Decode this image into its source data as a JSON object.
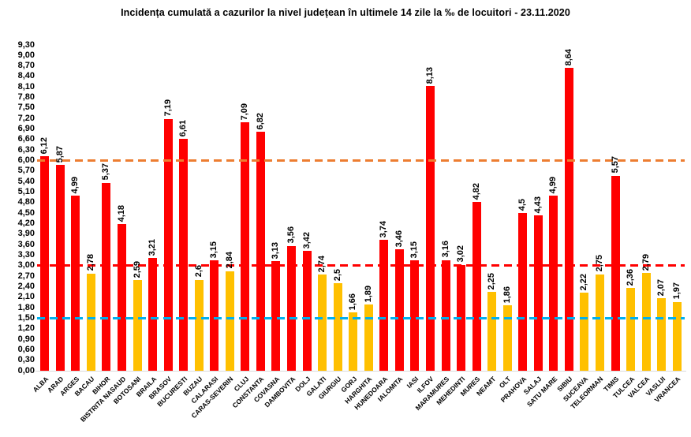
{
  "title": "Incidența cumulată a cazurilor la nivel județean în ultimele 14 zile la ‰ de locuitori - 23.11.2020",
  "chart_data": {
    "type": "bar",
    "title": "Incidența cumulată a cazurilor la nivel județean în ultimele 14 zile la ‰ de locuitori - 23.11.2020",
    "xlabel": "",
    "ylabel": "",
    "ylim": [
      0,
      9.3
    ],
    "ytick_step": 0.3,
    "grid": false,
    "legend": false,
    "ytick_labels": [
      "9,30",
      "9,00",
      "8,70",
      "8,40",
      "8,10",
      "7,80",
      "7,50",
      "7,20",
      "6,90",
      "6,60",
      "6,30",
      "6,00",
      "5,70",
      "5,40",
      "5,10",
      "4,80",
      "4,50",
      "4,20",
      "3,90",
      "3,60",
      "3,30",
      "3,00",
      "2,70",
      "2,40",
      "2,10",
      "1,80",
      "1,50",
      "1,20",
      "0,90",
      "0,60",
      "0,30",
      "0,00"
    ],
    "categories": [
      "ALBA",
      "ARAD",
      "ARGES",
      "BACAU",
      "BIHOR",
      "BISTRITA NASAUD",
      "BOTOSANI",
      "BRAILA",
      "BRASOV",
      "BUCURESTI",
      "BUZAU",
      "CALARASI",
      "CARAS-SEVERIN",
      "CLUJ",
      "CONSTANTA",
      "COVASNA",
      "DAMBOVITA",
      "DOLJ",
      "GALATI",
      "GIURGIU",
      "GORJ",
      "HARGHITA",
      "HUNEDOARA",
      "IALOMITA",
      "IASI",
      "ILFOV",
      "MARAMURES",
      "MEHEDINTI",
      "MURES",
      "NEAMT",
      "OLT",
      "PRAHOVA",
      "SALAJ",
      "SATU MARE",
      "SIBIU",
      "SUCEAVA",
      "TELEORMAN",
      "TIMIS",
      "TULCEA",
      "VALCEA",
      "VASLUI",
      "VRANCEA"
    ],
    "values": [
      6.12,
      5.87,
      4.99,
      2.78,
      5.37,
      4.18,
      2.59,
      3.21,
      7.19,
      6.61,
      2.6,
      3.15,
      2.84,
      7.09,
      6.82,
      3.13,
      3.56,
      3.42,
      2.74,
      2.5,
      1.66,
      1.89,
      3.74,
      3.46,
      3.15,
      8.13,
      3.16,
      3.02,
      4.82,
      2.25,
      1.86,
      4.5,
      4.43,
      4.99,
      8.64,
      2.22,
      2.75,
      5.57,
      2.36,
      2.79,
      2.07,
      1.97
    ],
    "value_labels": [
      "6,12",
      "5,87",
      "4,99",
      "2,78",
      "5,37",
      "4,18",
      "2,59",
      "3,21",
      "7,19",
      "6,61",
      "2,6",
      "3,15",
      "2,84",
      "7,09",
      "6,82",
      "3,13",
      "3,56",
      "3,42",
      "2,74",
      "2,5",
      "1,66",
      "1,89",
      "3,74",
      "3,46",
      "3,15",
      "8,13",
      "3,16",
      "3,02",
      "4,82",
      "2,25",
      "1,86",
      "4,5",
      "4,43",
      "4,99",
      "8,64",
      "2,22",
      "2,75",
      "5,57",
      "2,36",
      "2,79",
      "2,07",
      "1,97"
    ],
    "bar_colors": [
      "#FF0000",
      "#FF0000",
      "#FF0000",
      "#FFC000",
      "#FF0000",
      "#FF0000",
      "#FFC000",
      "#FF0000",
      "#FF0000",
      "#FF0000",
      "#FFC000",
      "#FF0000",
      "#FFC000",
      "#FF0000",
      "#FF0000",
      "#FF0000",
      "#FF0000",
      "#FF0000",
      "#FFC000",
      "#FFC000",
      "#FFC000",
      "#FFC000",
      "#FF0000",
      "#FF0000",
      "#FF0000",
      "#FF0000",
      "#FF0000",
      "#FF0000",
      "#FF0000",
      "#FFC000",
      "#FFC000",
      "#FF0000",
      "#FF0000",
      "#FF0000",
      "#FF0000",
      "#FFC000",
      "#FFC000",
      "#FF0000",
      "#FFC000",
      "#FFC000",
      "#FFC000",
      "#FFC000"
    ],
    "color_rule": {
      "threshold": 3.0,
      "at_or_above": "#FF0000",
      "below": "#FFC000"
    },
    "reference_lines": [
      {
        "name": "upper-threshold-line",
        "value": 6.0,
        "color": "#ED7D31"
      },
      {
        "name": "middle-threshold-line",
        "value": 3.0,
        "color": "#FF0000"
      },
      {
        "name": "lower-threshold-line",
        "value": 1.5,
        "color": "#00B0F0"
      }
    ]
  }
}
